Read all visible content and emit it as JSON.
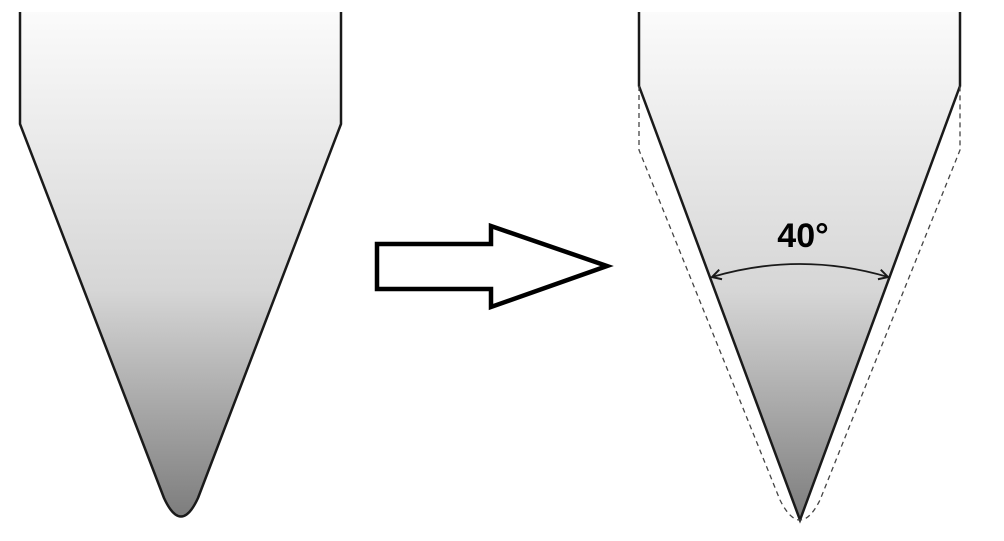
{
  "diagram": {
    "angle_label": "40°",
    "colors": {
      "outline": "#1a1a1a",
      "gradient_top": "#fbfbfb",
      "gradient_bottom": "#7d7d7d",
      "background": "#ffffff"
    }
  }
}
